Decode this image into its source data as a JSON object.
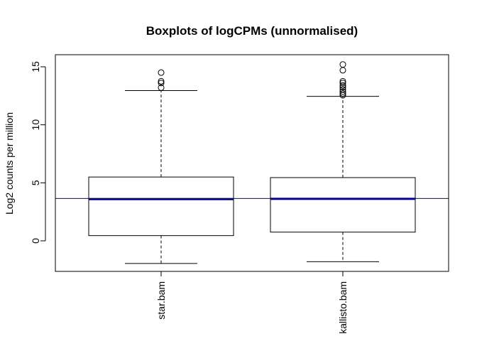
{
  "chart_data": {
    "type": "boxplot",
    "title": "Boxplots of logCPMs (unnormalised)",
    "xlabel": "",
    "ylabel": "Log2 counts per million",
    "ylim": [
      -2.6,
      16
    ],
    "yticks": [
      0,
      5,
      10,
      15
    ],
    "grid": false,
    "reference_line": {
      "y": 3.65,
      "color": "#0000cc"
    },
    "median_color": "#00007a",
    "categories": [
      "star.bam",
      "kallisto.bam"
    ],
    "boxes": [
      {
        "name": "star.bam",
        "whisker_low": -1.95,
        "q1": 0.45,
        "median": 3.6,
        "q3": 5.5,
        "whisker_high": 12.95,
        "outliers": [
          13.2,
          13.6,
          13.75,
          14.5
        ]
      },
      {
        "name": "kallisto.bam",
        "whisker_low": -1.8,
        "q1": 0.75,
        "median": 3.62,
        "q3": 5.45,
        "whisker_high": 12.45,
        "outliers": [
          12.55,
          12.7,
          12.85,
          13.05,
          13.25,
          13.4,
          13.6,
          13.75,
          14.7,
          15.2
        ]
      }
    ]
  }
}
